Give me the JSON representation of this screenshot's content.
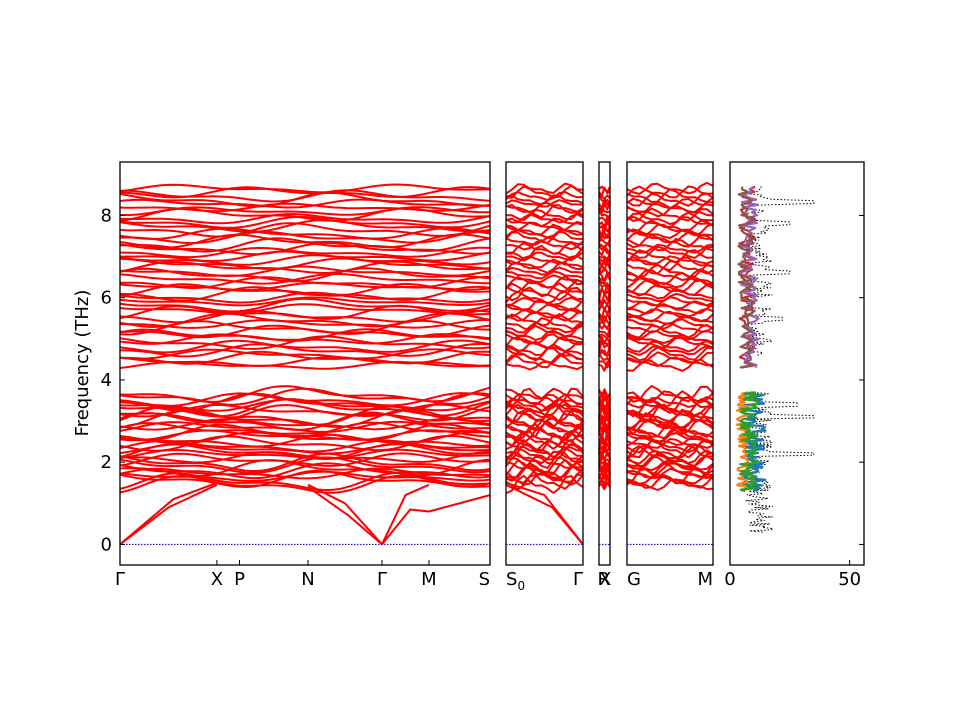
{
  "chart_data": {
    "type": "line",
    "ylabel": "Frequency (THz)",
    "ylim": [
      -0.5,
      9.3
    ],
    "yticks": [
      0,
      2,
      4,
      6,
      8
    ],
    "band_color": "#ff0000",
    "zero_line_color": "#1a1ab4",
    "panels": [
      {
        "id": "seg1",
        "xticks": [
          {
            "label": "Γ",
            "pos": 0.0
          },
          {
            "label": "X",
            "pos": 0.262
          },
          {
            "label": "P",
            "pos": 0.323
          },
          {
            "label": "N",
            "pos": 0.508
          },
          {
            "label": "Γ",
            "pos": 0.708
          },
          {
            "label": "M",
            "pos": 0.835
          },
          {
            "label": "S",
            "pos": 1.0
          }
        ]
      },
      {
        "id": "seg2",
        "xticks": [
          {
            "label": "S",
            "sub": "0",
            "pos": 0.0
          },
          {
            "label": "Γ",
            "pos": 1.0
          }
        ]
      },
      {
        "id": "seg3",
        "xticks": [
          {
            "label": "X",
            "pos": 0.0
          },
          {
            "label": "R",
            "pos": 1.0
          }
        ]
      },
      {
        "id": "seg4",
        "xticks": [
          {
            "label": "G",
            "pos": 0.0
          },
          {
            "label": "M",
            "pos": 1.0
          }
        ]
      }
    ],
    "dos": {
      "xlim": [
        0,
        56
      ],
      "xticks": [
        0,
        50
      ],
      "series": [
        {
          "color": "#000000",
          "style": "dotted",
          "peaks": [
            [
              4.33,
              55
            ],
            [
              8.33,
              35
            ],
            [
              3.1,
              35
            ],
            [
              2.2,
              35
            ],
            [
              7.8,
              25
            ],
            [
              5.5,
              22
            ],
            [
              6.6,
              25
            ],
            [
              3.4,
              28
            ]
          ]
        },
        {
          "color": "#1f77b4",
          "band": "low",
          "amp": 15
        },
        {
          "color": "#ff7f0e",
          "band": "low",
          "amp": 8
        },
        {
          "color": "#2ca02c",
          "band": "low",
          "amp": 12
        },
        {
          "color": "#d62728",
          "band": "high",
          "amp": 11
        },
        {
          "color": "#9467bd",
          "band": "high",
          "amp": 12
        },
        {
          "color": "#8c564b",
          "band": "high",
          "amp": 10
        }
      ]
    }
  }
}
